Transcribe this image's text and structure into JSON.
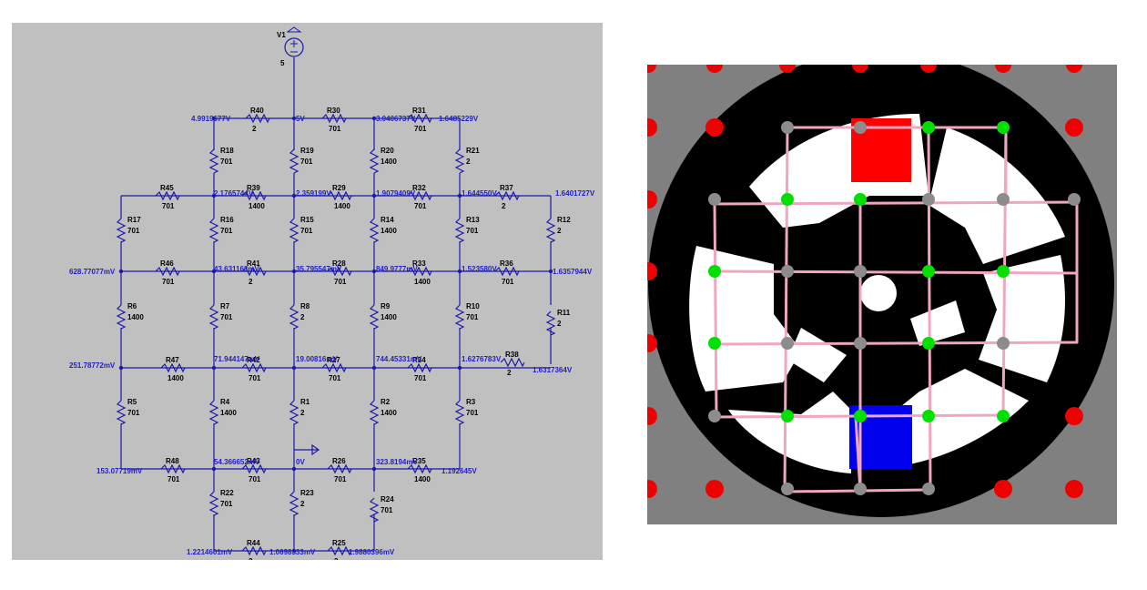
{
  "schematic": {
    "source": {
      "name": "V1",
      "value": "5"
    },
    "resistors": [
      {
        "id": "R40",
        "name": "R40",
        "value": "2"
      },
      {
        "id": "R30",
        "name": "R30",
        "value": "701"
      },
      {
        "id": "R31",
        "name": "R31",
        "value": "701"
      },
      {
        "id": "R18",
        "name": "R18",
        "value": "701"
      },
      {
        "id": "R19",
        "name": "R19",
        "value": "701"
      },
      {
        "id": "R20",
        "name": "R20",
        "value": "1400"
      },
      {
        "id": "R21",
        "name": "R21",
        "value": "2"
      },
      {
        "id": "R45",
        "name": "R45",
        "value": "701"
      },
      {
        "id": "R39",
        "name": "R39",
        "value": "1400"
      },
      {
        "id": "R29",
        "name": "R29",
        "value": "1400"
      },
      {
        "id": "R32",
        "name": "R32",
        "value": "701"
      },
      {
        "id": "R37",
        "name": "R37",
        "value": "2"
      },
      {
        "id": "R17",
        "name": "R17",
        "value": "701"
      },
      {
        "id": "R16",
        "name": "R16",
        "value": "701"
      },
      {
        "id": "R15",
        "name": "R15",
        "value": "701"
      },
      {
        "id": "R14",
        "name": "R14",
        "value": "1400"
      },
      {
        "id": "R13",
        "name": "R13",
        "value": "701"
      },
      {
        "id": "R12",
        "name": "R12",
        "value": "2"
      },
      {
        "id": "R46",
        "name": "R46",
        "value": "701"
      },
      {
        "id": "R41",
        "name": "R41",
        "value": "2"
      },
      {
        "id": "R28",
        "name": "R28",
        "value": "701"
      },
      {
        "id": "R33",
        "name": "R33",
        "value": "1400"
      },
      {
        "id": "R36",
        "name": "R36",
        "value": "701"
      },
      {
        "id": "R6",
        "name": "R6",
        "value": "1400"
      },
      {
        "id": "R7",
        "name": "R7",
        "value": "701"
      },
      {
        "id": "R8",
        "name": "R8",
        "value": "2"
      },
      {
        "id": "R9",
        "name": "R9",
        "value": "1400"
      },
      {
        "id": "R10",
        "name": "R10",
        "value": "701"
      },
      {
        "id": "R11",
        "name": "R11",
        "value": "2"
      },
      {
        "id": "R47",
        "name": "R47",
        "value": "1400"
      },
      {
        "id": "R42",
        "name": "R42",
        "value": "701"
      },
      {
        "id": "R27",
        "name": "R27",
        "value": "701"
      },
      {
        "id": "R34",
        "name": "R34",
        "value": "701"
      },
      {
        "id": "R38",
        "name": "R38",
        "value": "2"
      },
      {
        "id": "R5",
        "name": "R5",
        "value": "701"
      },
      {
        "id": "R4",
        "name": "R4",
        "value": "1400"
      },
      {
        "id": "R1",
        "name": "R1",
        "value": "2"
      },
      {
        "id": "R2",
        "name": "R2",
        "value": "1400"
      },
      {
        "id": "R3",
        "name": "R3",
        "value": "701"
      },
      {
        "id": "R48",
        "name": "R48",
        "value": "701"
      },
      {
        "id": "R43",
        "name": "R43",
        "value": "701"
      },
      {
        "id": "R26",
        "name": "R26",
        "value": "701"
      },
      {
        "id": "R35",
        "name": "R35",
        "value": "1400"
      },
      {
        "id": "R22",
        "name": "R22",
        "value": "701"
      },
      {
        "id": "R23",
        "name": "R23",
        "value": "2"
      },
      {
        "id": "R24",
        "name": "R24",
        "value": "701"
      },
      {
        "id": "R44",
        "name": "R44",
        "value": "2"
      },
      {
        "id": "R25",
        "name": "R25",
        "value": "2"
      }
    ],
    "node_voltages": [
      {
        "id": "v1",
        "text": "4.9919677V"
      },
      {
        "id": "v2",
        "text": "5V"
      },
      {
        "id": "v3",
        "text": "3.0406737V"
      },
      {
        "id": "v4",
        "text": "1.6485229V"
      },
      {
        "id": "v5",
        "text": "2.1765744V"
      },
      {
        "id": "v6",
        "text": "2.359199V"
      },
      {
        "id": "v7",
        "text": "1.9079409V"
      },
      {
        "id": "v8",
        "text": "1.644550V"
      },
      {
        "id": "v9",
        "text": "1.6401727V"
      },
      {
        "id": "v10",
        "text": "628.77077mV"
      },
      {
        "id": "v11",
        "text": "43.631163mV"
      },
      {
        "id": "v12",
        "text": "35.795547mV"
      },
      {
        "id": "v13",
        "text": "849.9777mV"
      },
      {
        "id": "v14",
        "text": "1.523580V"
      },
      {
        "id": "v15",
        "text": "1.6357944V"
      },
      {
        "id": "v16",
        "text": "251.78772mV"
      },
      {
        "id": "v17",
        "text": "71.944147mV"
      },
      {
        "id": "v18",
        "text": "19.00816mV"
      },
      {
        "id": "v19",
        "text": "744.45331mV"
      },
      {
        "id": "v20",
        "text": "1.6276783V"
      },
      {
        "id": "v21",
        "text": "1.6317364V"
      },
      {
        "id": "v22",
        "text": "153.07719mV"
      },
      {
        "id": "v23",
        "text": "54.366652mV"
      },
      {
        "id": "v24",
        "text": "0V"
      },
      {
        "id": "v25",
        "text": "323.8194mV"
      },
      {
        "id": "v26",
        "text": "1.192645V"
      },
      {
        "id": "v27",
        "text": "1.2214601mV"
      },
      {
        "id": "v28",
        "text": "1.0698333mV"
      },
      {
        "id": "v29",
        "text": "1.9880396mV"
      }
    ]
  },
  "colors": {
    "schematic_bg": "#c0c0c0",
    "wire": "#1a1aa8",
    "label": "#2020c8",
    "component_text": "#000000",
    "board_bg": "#808080",
    "disc_ring": "#000000",
    "disc_face": "#ffffff",
    "grid_line": "#f0a6c0",
    "node_gray": "#8c8c8c",
    "node_green": "#00e000",
    "node_red": "#ee0000",
    "marker_red": "#ff0000",
    "marker_blue": "#0000ee"
  }
}
